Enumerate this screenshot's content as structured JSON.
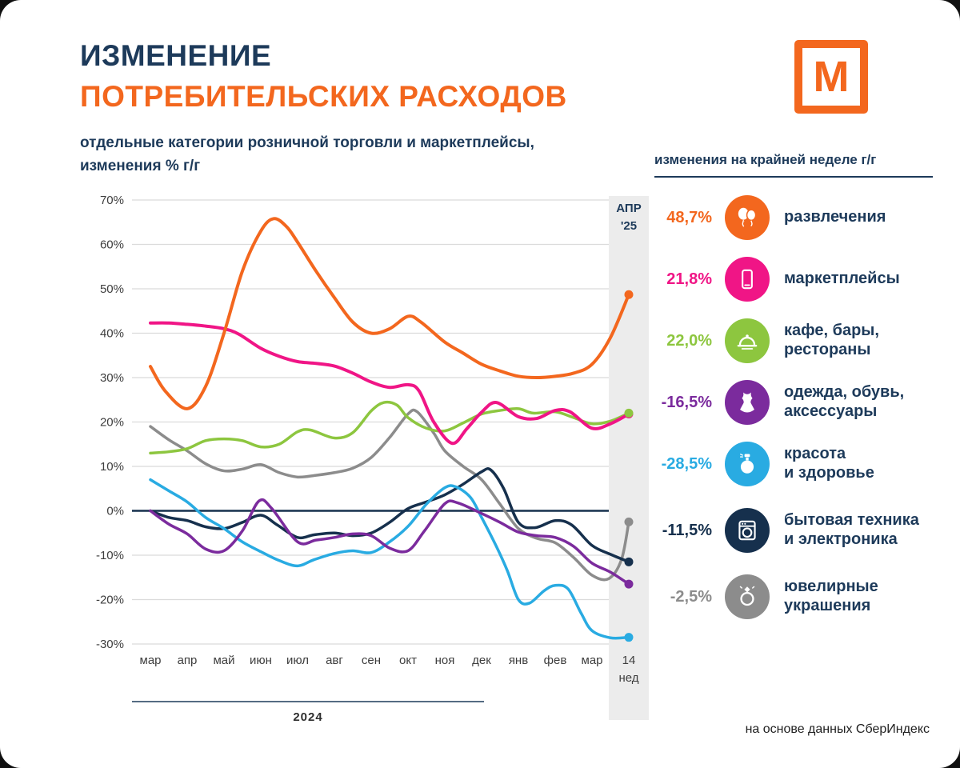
{
  "header": {
    "title_line1": "ИЗМЕНЕНИЕ",
    "title_line2": "ПОТРЕБИТЕЛЬСКИХ РАСХОДОВ",
    "subtitle_line1": "отдельные категории розничной торговли и маркетплейсы,",
    "subtitle_line2": "изменения % г/г",
    "logo_letter": "М",
    "title_color": "#1D3A5A",
    "accent_color": "#F3671E"
  },
  "legend": {
    "title": "изменения на крайней неделе г/г",
    "items": [
      {
        "value": "48,7%",
        "color": "#F3671E",
        "icon": "balloons-icon",
        "label_lines": [
          "развлечения"
        ]
      },
      {
        "value": "21,8%",
        "color": "#F01586",
        "icon": "smartphone-icon",
        "label_lines": [
          "маркетплейсы"
        ]
      },
      {
        "value": "22,0%",
        "color": "#8DC63F",
        "icon": "cloche-icon",
        "label_lines": [
          "кафе, бары,",
          "рестораны"
        ]
      },
      {
        "value": "-16,5%",
        "color": "#7B2B9D",
        "icon": "dress-icon",
        "label_lines": [
          "одежда, обувь,",
          "аксессуары"
        ]
      },
      {
        "value": "-28,5%",
        "color": "#29ABE2",
        "icon": "perfume-icon",
        "label_lines": [
          "красота",
          "и здоровье"
        ]
      },
      {
        "value": "-11,5%",
        "color": "#16304D",
        "icon": "washing-machine-icon",
        "label_lines": [
          "бытовая техника",
          "и электроника"
        ]
      },
      {
        "value": "-2,5%",
        "color": "#8C8C8C",
        "icon": "ring-icon",
        "label_lines": [
          "ювелирные",
          "украшения"
        ]
      }
    ]
  },
  "footer": {
    "source": "на основе данных СберИндекс"
  },
  "chart_data": {
    "type": "line",
    "title": "отдельные категории розничной торговли и маркетплейсы, изменения % г/г",
    "unit": "%",
    "ylim": [
      -30,
      70
    ],
    "y_tick_step": 10,
    "grid": "horizontal",
    "legend_position": "right",
    "x_tick_labels": [
      "мар",
      "апр",
      "май",
      "июн",
      "июл",
      "авг",
      "сен",
      "окт",
      "ноя",
      "дек",
      "янв",
      "фев",
      "мар",
      "14 нед"
    ],
    "x_axis_group_label": "2024",
    "highlight_column": {
      "label_lines": [
        "АПР",
        "'25"
      ],
      "x_index": 13
    },
    "series": [
      {
        "name": "развлечения",
        "color": "#F3671E",
        "stroke_width": 4,
        "final_value": 48.7,
        "points": [
          [
            0,
            32.5
          ],
          [
            0.4,
            27
          ],
          [
            1,
            23
          ],
          [
            1.5,
            28
          ],
          [
            2,
            40
          ],
          [
            2.5,
            54
          ],
          [
            3,
            63
          ],
          [
            3.35,
            65.8
          ],
          [
            3.7,
            64
          ],
          [
            4,
            60.5
          ],
          [
            4.5,
            54
          ],
          [
            5,
            48
          ],
          [
            5.5,
            42.5
          ],
          [
            6,
            40
          ],
          [
            6.5,
            41
          ],
          [
            7,
            43.8
          ],
          [
            7.35,
            42.5
          ],
          [
            8,
            38
          ],
          [
            8.5,
            35.5
          ],
          [
            9,
            33
          ],
          [
            9.5,
            31.5
          ],
          [
            10,
            30.3
          ],
          [
            10.5,
            30
          ],
          [
            11,
            30.3
          ],
          [
            11.5,
            31
          ],
          [
            12,
            33
          ],
          [
            12.5,
            39
          ],
          [
            13,
            48.7
          ]
        ]
      },
      {
        "name": "маркетплейсы",
        "color": "#F01586",
        "stroke_width": 4,
        "final_value": 21.8,
        "points": [
          [
            0,
            42.3
          ],
          [
            0.5,
            42.3
          ],
          [
            1,
            42
          ],
          [
            1.5,
            41.6
          ],
          [
            2,
            41
          ],
          [
            2.4,
            39.8
          ],
          [
            3,
            36.6
          ],
          [
            3.5,
            34.8
          ],
          [
            4,
            33.6
          ],
          [
            4.5,
            33.2
          ],
          [
            5,
            32.6
          ],
          [
            5.5,
            31
          ],
          [
            6,
            29
          ],
          [
            6.5,
            27.8
          ],
          [
            7,
            28.4
          ],
          [
            7.3,
            27
          ],
          [
            7.7,
            20
          ],
          [
            8.2,
            15.2
          ],
          [
            8.6,
            18.5
          ],
          [
            9,
            22.2
          ],
          [
            9.4,
            24.4
          ],
          [
            10,
            21.2
          ],
          [
            10.5,
            20.8
          ],
          [
            11,
            22.6
          ],
          [
            11.4,
            22.3
          ],
          [
            12,
            18.6
          ],
          [
            12.5,
            19.6
          ],
          [
            13,
            21.8
          ]
        ]
      },
      {
        "name": "кафе, бары, рестораны",
        "color": "#8DC63F",
        "stroke_width": 3.5,
        "final_value": 22.0,
        "points": [
          [
            0,
            13
          ],
          [
            0.5,
            13.3
          ],
          [
            1,
            14
          ],
          [
            1.5,
            15.8
          ],
          [
            2,
            16.2
          ],
          [
            2.5,
            15.8
          ],
          [
            3,
            14.4
          ],
          [
            3.5,
            15
          ],
          [
            4,
            17.8
          ],
          [
            4.35,
            18.2
          ],
          [
            5,
            16.4
          ],
          [
            5.5,
            17.6
          ],
          [
            6,
            22.5
          ],
          [
            6.35,
            24.4
          ],
          [
            6.7,
            23.8
          ],
          [
            7,
            21
          ],
          [
            7.5,
            18.6
          ],
          [
            8,
            18
          ],
          [
            8.5,
            19.8
          ],
          [
            9,
            21.8
          ],
          [
            9.5,
            22.6
          ],
          [
            10,
            23
          ],
          [
            10.4,
            22
          ],
          [
            11,
            22.3
          ],
          [
            11.5,
            21
          ],
          [
            12,
            19.6
          ],
          [
            12.5,
            20.2
          ],
          [
            13,
            22
          ]
        ]
      },
      {
        "name": "одежда, обувь, аксессуары",
        "color": "#7B2B9D",
        "stroke_width": 3.5,
        "final_value": -16.5,
        "points": [
          [
            0,
            0
          ],
          [
            0.5,
            -3
          ],
          [
            1,
            -5.2
          ],
          [
            1.5,
            -8.6
          ],
          [
            2,
            -9
          ],
          [
            2.5,
            -4.5
          ],
          [
            2.95,
            2.2
          ],
          [
            3.3,
            0.5
          ],
          [
            4,
            -7
          ],
          [
            4.5,
            -6.6
          ],
          [
            5,
            -6
          ],
          [
            5.5,
            -5.2
          ],
          [
            6,
            -5.6
          ],
          [
            6.5,
            -8.4
          ],
          [
            7,
            -9
          ],
          [
            7.45,
            -4.5
          ],
          [
            8,
            1.6
          ],
          [
            8.35,
            1.8
          ],
          [
            9,
            -0.6
          ],
          [
            9.5,
            -2.6
          ],
          [
            10,
            -4.8
          ],
          [
            10.5,
            -5.6
          ],
          [
            11,
            -6
          ],
          [
            11.5,
            -8
          ],
          [
            12,
            -11.8
          ],
          [
            12.5,
            -13.8
          ],
          [
            13,
            -16.5
          ]
        ]
      },
      {
        "name": "красота и здоровье",
        "color": "#29ABE2",
        "stroke_width": 3.5,
        "final_value": -28.5,
        "points": [
          [
            0,
            7
          ],
          [
            0.5,
            4.5
          ],
          [
            1,
            2
          ],
          [
            1.5,
            -1.5
          ],
          [
            2,
            -4
          ],
          [
            2.5,
            -7
          ],
          [
            3,
            -9.2
          ],
          [
            3.5,
            -11.2
          ],
          [
            4,
            -12.4
          ],
          [
            4.45,
            -11
          ],
          [
            5,
            -9.6
          ],
          [
            5.5,
            -9
          ],
          [
            6,
            -9.4
          ],
          [
            6.5,
            -7
          ],
          [
            7,
            -3.5
          ],
          [
            7.5,
            1.5
          ],
          [
            8,
            5.2
          ],
          [
            8.3,
            5.4
          ],
          [
            8.7,
            3
          ],
          [
            9,
            -1.5
          ],
          [
            9.4,
            -8
          ],
          [
            9.7,
            -13.5
          ],
          [
            10,
            -20
          ],
          [
            10.3,
            -20.8
          ],
          [
            10.7,
            -18
          ],
          [
            11,
            -16.8
          ],
          [
            11.35,
            -17.6
          ],
          [
            11.7,
            -23
          ],
          [
            12,
            -27
          ],
          [
            12.5,
            -28.6
          ],
          [
            13,
            -28.5
          ]
        ]
      },
      {
        "name": "бытовая техника и электроника",
        "color": "#16304D",
        "stroke_width": 3.5,
        "final_value": -11.5,
        "points": [
          [
            0,
            0
          ],
          [
            0.5,
            -1.5
          ],
          [
            1,
            -2.2
          ],
          [
            1.5,
            -3.6
          ],
          [
            2,
            -4
          ],
          [
            2.5,
            -2.6
          ],
          [
            3,
            -1
          ],
          [
            3.45,
            -3.2
          ],
          [
            4,
            -6
          ],
          [
            4.45,
            -5.4
          ],
          [
            5,
            -5
          ],
          [
            5.5,
            -5.6
          ],
          [
            6,
            -5
          ],
          [
            6.5,
            -2.6
          ],
          [
            7,
            0.5
          ],
          [
            7.5,
            2
          ],
          [
            8,
            3.6
          ],
          [
            8.5,
            6
          ],
          [
            9,
            8.8
          ],
          [
            9.25,
            9.2
          ],
          [
            9.6,
            5
          ],
          [
            10,
            -2.6
          ],
          [
            10.45,
            -3.8
          ],
          [
            11,
            -2.2
          ],
          [
            11.45,
            -3.2
          ],
          [
            12,
            -7.8
          ],
          [
            12.5,
            -9.8
          ],
          [
            13,
            -11.5
          ]
        ]
      },
      {
        "name": "ювелирные украшения",
        "color": "#8C8C8C",
        "stroke_width": 3.5,
        "final_value": -2.5,
        "points": [
          [
            0,
            19
          ],
          [
            0.5,
            16
          ],
          [
            1,
            13.5
          ],
          [
            1.5,
            10.6
          ],
          [
            2,
            9
          ],
          [
            2.5,
            9.4
          ],
          [
            3,
            10.4
          ],
          [
            3.5,
            8.6
          ],
          [
            4,
            7.6
          ],
          [
            4.5,
            8
          ],
          [
            5,
            8.6
          ],
          [
            5.5,
            9.6
          ],
          [
            6,
            12
          ],
          [
            6.5,
            16.5
          ],
          [
            7,
            21.8
          ],
          [
            7.25,
            22.3
          ],
          [
            7.7,
            17.5
          ],
          [
            8,
            13.5
          ],
          [
            8.5,
            10
          ],
          [
            9,
            7
          ],
          [
            9.5,
            1.5
          ],
          [
            10,
            -4
          ],
          [
            10.5,
            -6.2
          ],
          [
            11,
            -7.2
          ],
          [
            11.5,
            -10.5
          ],
          [
            12,
            -14.5
          ],
          [
            12.45,
            -15.3
          ],
          [
            12.8,
            -11
          ],
          [
            13,
            -2.5
          ]
        ]
      }
    ]
  }
}
